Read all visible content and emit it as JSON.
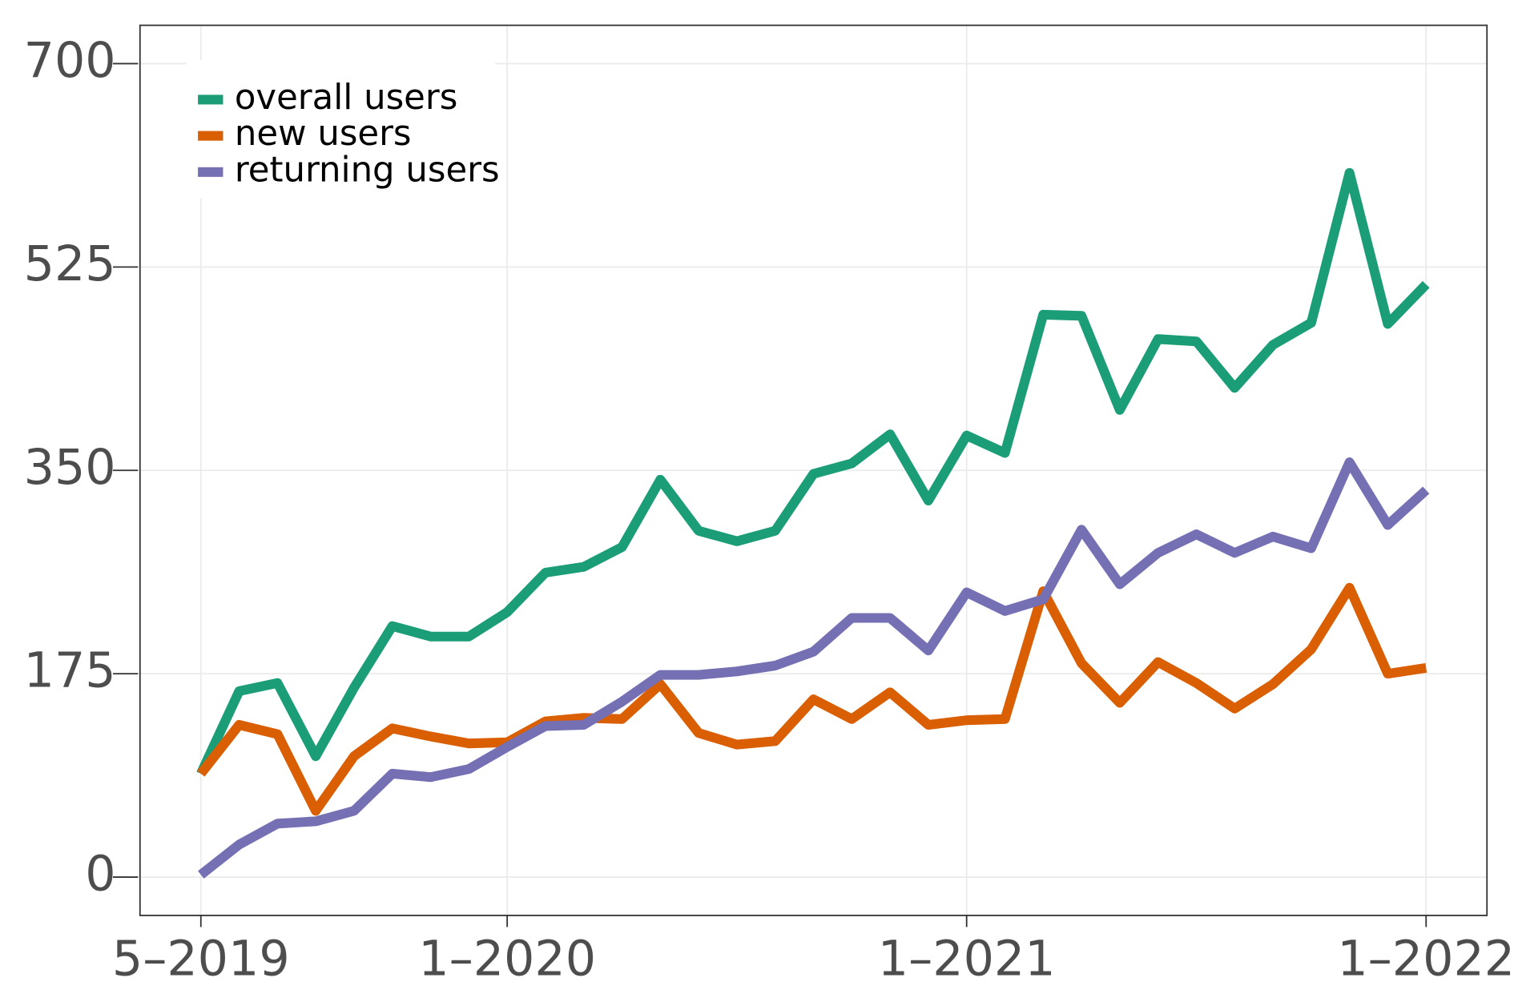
{
  "chart_data": {
    "type": "line",
    "x": [
      "2019-05",
      "2019-06",
      "2019-07",
      "2019-08",
      "2019-09",
      "2019-10",
      "2019-11",
      "2019-12",
      "2020-01",
      "2020-02",
      "2020-03",
      "2020-04",
      "2020-05",
      "2020-06",
      "2020-07",
      "2020-08",
      "2020-09",
      "2020-10",
      "2020-11",
      "2020-12",
      "2021-01",
      "2021-02",
      "2021-03",
      "2021-04",
      "2021-05",
      "2021-06",
      "2021-07",
      "2021-08",
      "2021-09",
      "2021-10",
      "2021-11",
      "2021-12",
      "2022-01"
    ],
    "series": [
      {
        "name": "overall users",
        "color": "#1b9e77",
        "values": [
          89,
          160,
          167,
          104,
          163,
          216,
          207,
          207,
          228,
          262,
          267,
          284,
          342,
          298,
          289,
          298,
          347,
          356,
          381,
          324,
          380,
          365,
          484,
          483,
          402,
          463,
          461,
          421,
          458,
          477,
          606,
          476,
          510
        ]
      },
      {
        "name": "new users",
        "color": "#d95f02",
        "values": [
          89,
          131,
          123,
          57,
          104,
          128,
          121,
          115,
          116,
          134,
          137,
          136,
          166,
          124,
          114,
          117,
          153,
          136,
          159,
          131,
          135,
          136,
          246,
          184,
          150,
          185,
          167,
          145,
          166,
          196,
          249,
          175,
          180
        ]
      },
      {
        "name": "returning users",
        "color": "#7570b3",
        "values": [
          2,
          28,
          46,
          48,
          57,
          89,
          86,
          93,
          112,
          130,
          131,
          151,
          174,
          174,
          177,
          182,
          194,
          223,
          223,
          195,
          245,
          229,
          239,
          299,
          252,
          279,
          295,
          279,
          293,
          283,
          357,
          303,
          333
        ]
      }
    ],
    "xticks": [
      {
        "value": "2019-05",
        "label": "5–2019"
      },
      {
        "value": "2020-01",
        "label": "1–2020"
      },
      {
        "value": "2021-01",
        "label": "1–2021"
      },
      {
        "value": "2022-01",
        "label": "1–2022"
      }
    ],
    "ylim": [
      -33,
      733
    ],
    "yticks": [
      0,
      175,
      350,
      525,
      700
    ],
    "grid": true,
    "legend": "top-left"
  }
}
